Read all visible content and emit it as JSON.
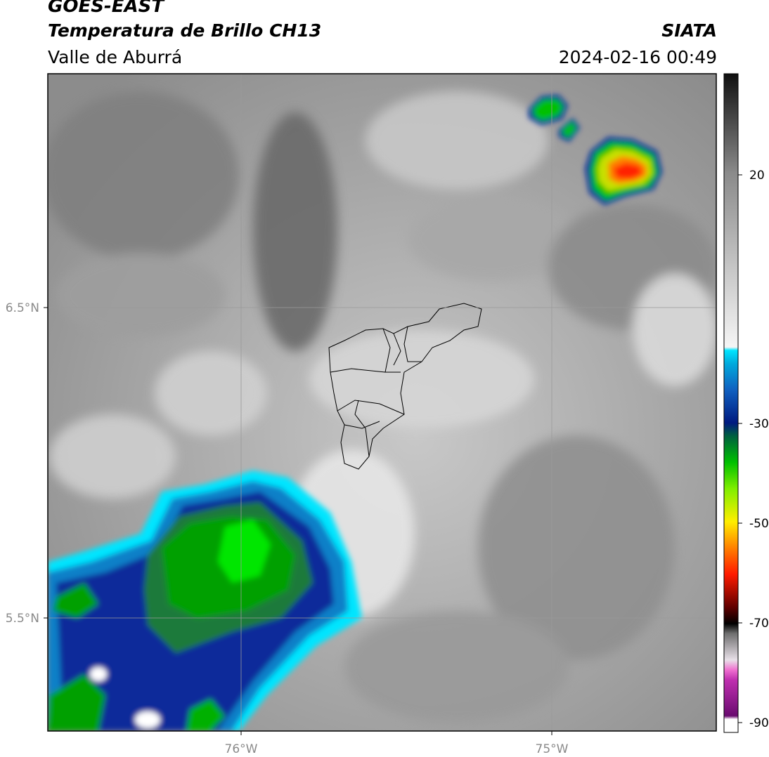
{
  "header": {
    "satellite": "GOES-EAST",
    "product": "Temperatura de Brillo CH13",
    "region": "Valle de Aburrá",
    "agency": "SIATA",
    "datetime": "2024-02-16 00:49"
  },
  "axes": {
    "latitude_ticks": [
      "6.5°N",
      "5.5°N"
    ],
    "longitude_ticks": [
      "76°W",
      "75°W"
    ]
  },
  "colorbar": {
    "ticks": [
      "20",
      "-30",
      "-50",
      "-70",
      "-90"
    ],
    "colors": {
      "gray_light": "#f4f4f4",
      "gray_dark": "#1a1a1a",
      "cyan": "#00e5ff",
      "blue": "#0a2a9a",
      "green": "#00d000",
      "yellow": "#ffee00",
      "red": "#ff1a00",
      "dark_red": "#600000",
      "magenta": "#e040c0",
      "purple": "#7a1080"
    }
  }
}
